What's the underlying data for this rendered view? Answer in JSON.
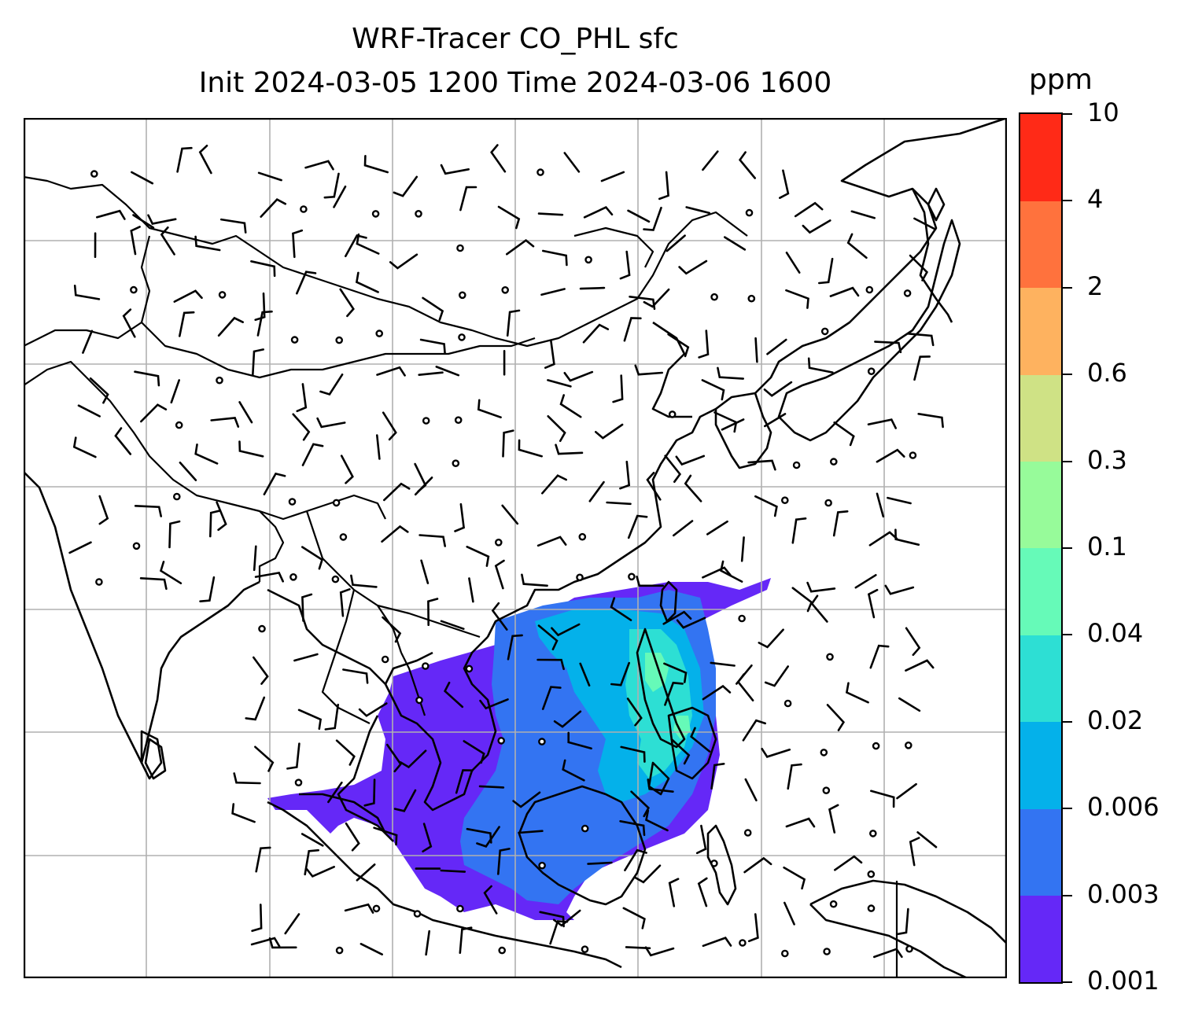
{
  "title": {
    "line1": "WRF-Tracer CO_PHL sfc",
    "line2": "Init 2024-03-05 1200 Time 2024-03-06 1600"
  },
  "colorbar": {
    "unit": "ppm",
    "levels": [
      "0.001",
      "0.003",
      "0.006",
      "0.02",
      "0.04",
      "0.1",
      "0.3",
      "0.6",
      "2",
      "4",
      "10"
    ],
    "colors": [
      "#6528f7",
      "#3374f2",
      "#04b1ea",
      "#2ddfd4",
      "#66fab8",
      "#97fb9a",
      "#cfe285",
      "#feb25f",
      "#ff723d",
      "#ff2a17"
    ]
  },
  "map": {
    "gridlines": true,
    "features": [
      "coastlines",
      "country-borders",
      "wind-barbs",
      "calm-wind-circles",
      "tracer-plume"
    ],
    "plume_levels_present": [
      "0.001",
      "0.003",
      "0.006",
      "0.02",
      "0.04",
      "0.1"
    ]
  }
}
